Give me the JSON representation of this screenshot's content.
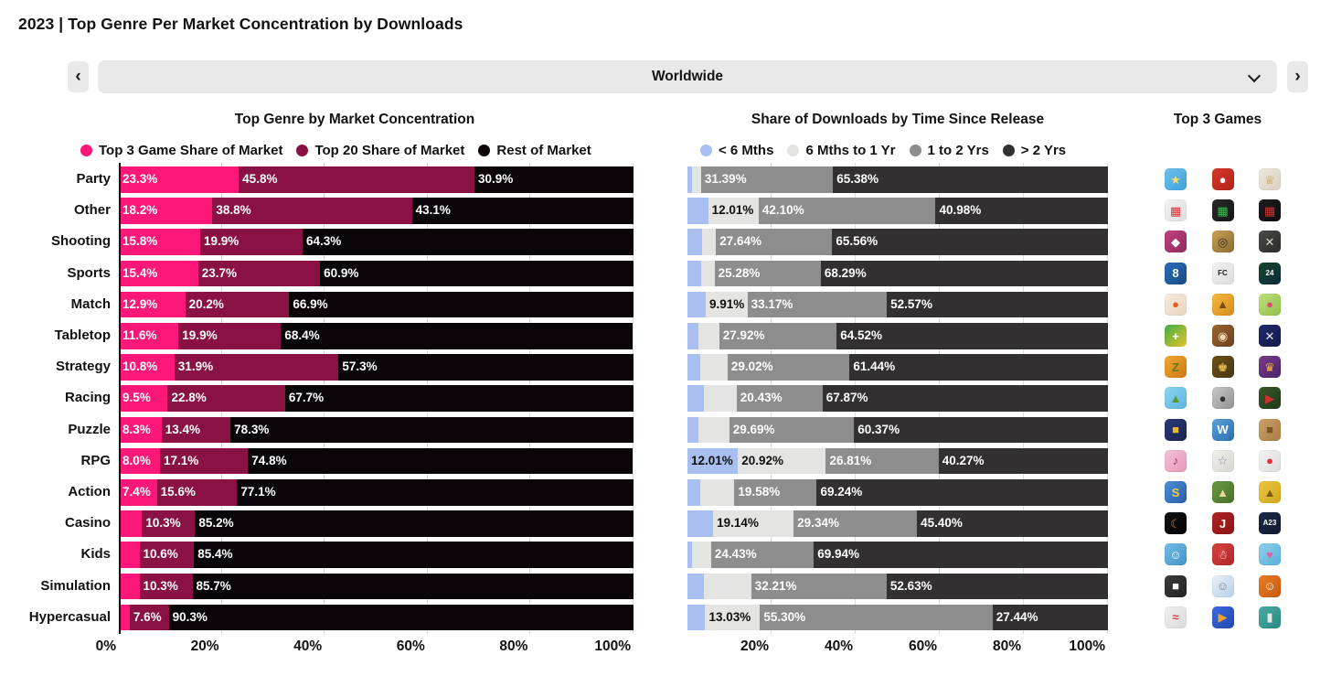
{
  "page_title": "2023 | Top Genre Per Market Concentration by Downloads",
  "selector": {
    "value": "Worldwide",
    "prev_label": "‹",
    "next_label": "›",
    "chevron": "chevron-down-icon"
  },
  "colors": {
    "control_bg": "#e9e9e9",
    "top3_share": "#fb1879",
    "top20_share": "#8a1143",
    "rest_of_market": "#0a0509",
    "lt_6_mths": "#a9bff1",
    "6m_to_1yr": "#e4e4e2",
    "1_to_2_yrs": "#8d8d8d",
    "gt_2_yrs": "#323031"
  },
  "chart_data": [
    {
      "type": "bar",
      "stacked": true,
      "orientation": "horizontal",
      "title": "Top Genre by Market Concentration",
      "xlim": [
        0,
        100
      ],
      "grid": true,
      "legend_position": "top",
      "x_ticks": [
        "0%",
        "20%",
        "40%",
        "60%",
        "80%",
        "100%"
      ],
      "x_tick_pcts": [
        0,
        20,
        40,
        60,
        80,
        100
      ],
      "categories": [
        "Party",
        "Other",
        "Shooting",
        "Sports",
        "Match",
        "Tabletop",
        "Strategy",
        "Racing",
        "Puzzle",
        "RPG",
        "Action",
        "Casino",
        "Kids",
        "Simulation",
        "Hypercasual"
      ],
      "series": [
        {
          "name": "Top 3 Game Share of Market",
          "color": "#fb1879",
          "label_color": "#ffffff",
          "values": [
            23.3,
            18.2,
            15.8,
            15.4,
            12.9,
            11.6,
            10.8,
            9.5,
            8.3,
            8.0,
            7.4,
            4.5,
            4.0,
            4.0,
            2.1
          ],
          "labels": [
            "23.3%",
            "18.2%",
            "15.8%",
            "15.4%",
            "12.9%",
            "11.6%",
            "10.8%",
            "9.5%",
            "8.3%",
            "8.0%",
            "7.4%",
            "",
            "",
            "",
            ""
          ]
        },
        {
          "name": "Top 20 Share of Market",
          "color": "#8a1143",
          "label_color": "#ffffff",
          "values": [
            45.8,
            38.8,
            19.9,
            23.7,
            20.2,
            19.9,
            31.9,
            22.8,
            13.4,
            17.1,
            15.6,
            10.3,
            10.6,
            10.3,
            7.6
          ],
          "labels": [
            "45.8%",
            "38.8%",
            "19.9%",
            "23.7%",
            "20.2%",
            "19.9%",
            "31.9%",
            "22.8%",
            "13.4%",
            "17.1%",
            "15.6%",
            "10.3%",
            "10.6%",
            "10.3%",
            "7.6%"
          ]
        },
        {
          "name": "Rest of Market",
          "color": "#0a0509",
          "label_color": "#ffffff",
          "values": [
            30.9,
            43.1,
            64.3,
            60.9,
            66.9,
            68.4,
            57.3,
            67.7,
            78.3,
            74.8,
            77.1,
            85.2,
            85.4,
            85.7,
            90.3
          ],
          "labels": [
            "30.9%",
            "43.1%",
            "64.3%",
            "60.9%",
            "66.9%",
            "68.4%",
            "57.3%",
            "67.7%",
            "78.3%",
            "74.8%",
            "77.1%",
            "85.2%",
            "85.4%",
            "85.7%",
            "90.3%"
          ]
        }
      ],
      "note": "Unlabeled segments sized from 100% remainder"
    },
    {
      "type": "bar",
      "stacked": true,
      "orientation": "horizontal",
      "title": "Share of Downloads by Time Since Release",
      "xlim": [
        0,
        100
      ],
      "grid": true,
      "legend_position": "top",
      "x_ticks": [
        "20%",
        "40%",
        "60%",
        "80%",
        "100%"
      ],
      "x_tick_pcts": [
        20,
        40,
        60,
        80,
        100
      ],
      "categories": [
        "Party",
        "Other",
        "Shooting",
        "Sports",
        "Match",
        "Tabletop",
        "Strategy",
        "Racing",
        "Puzzle",
        "RPG",
        "Action",
        "Casino",
        "Kids",
        "Simulation",
        "Hypercasual"
      ],
      "series": [
        {
          "name": "< 6 Mths",
          "color": "#a9bff1",
          "label_color": "#101010",
          "values": [
            1.0,
            4.91,
            3.4,
            3.2,
            4.35,
            2.5,
            3.0,
            4.0,
            2.5,
            12.01,
            3.0,
            6.12,
            1.0,
            4.0,
            4.23
          ],
          "labels": [
            "",
            "",
            "",
            "",
            "",
            "",
            "",
            "",
            "",
            "12.01%",
            "",
            "",
            "",
            "",
            ""
          ]
        },
        {
          "name": "6 Mths to 1 Yr",
          "color": "#e4e4e2",
          "label_color": "#101010",
          "values": [
            2.23,
            12.01,
            3.4,
            3.23,
            9.91,
            5.06,
            6.54,
            7.7,
            7.44,
            20.92,
            8.18,
            19.14,
            4.63,
            11.16,
            13.03
          ],
          "labels": [
            "",
            "12.01%",
            "",
            "",
            "9.91%",
            "",
            "",
            "",
            "",
            "20.92%",
            "",
            "19.14%",
            "",
            "",
            "13.03%"
          ]
        },
        {
          "name": "1 to 2 Yrs",
          "color": "#8d8d8d",
          "label_color": "#ffffff",
          "values": [
            31.39,
            42.1,
            27.64,
            25.28,
            33.17,
            27.92,
            29.02,
            20.43,
            29.69,
            26.81,
            19.58,
            29.34,
            24.43,
            32.21,
            55.3
          ],
          "labels": [
            "31.39%",
            "42.10%",
            "27.64%",
            "25.28%",
            "33.17%",
            "27.92%",
            "29.02%",
            "20.43%",
            "29.69%",
            "26.81%",
            "19.58%",
            "29.34%",
            "24.43%",
            "32.21%",
            "55.30%"
          ]
        },
        {
          "name": "> 2 Yrs",
          "color": "#323031",
          "label_color": "#ffffff",
          "values": [
            65.38,
            40.98,
            65.56,
            68.29,
            52.57,
            64.52,
            61.44,
            67.87,
            60.37,
            40.27,
            69.24,
            45.4,
            69.94,
            52.63,
            27.44
          ],
          "labels": [
            "65.38%",
            "40.98%",
            "65.56%",
            "68.29%",
            "52.57%",
            "64.52%",
            "61.44%",
            "67.87%",
            "60.37%",
            "40.27%",
            "69.24%",
            "45.40%",
            "69.94%",
            "52.63%",
            "27.44%"
          ]
        }
      ],
      "note": "Unlabeled segments sized from 100% remainder"
    }
  ],
  "top3_games": {
    "title": "Top 3 Games",
    "rows": [
      {
        "genre": "Party",
        "icons": [
          {
            "bg": "#6fc3ef",
            "bg2": "#3f9fd8",
            "fg": "#f7e06a",
            "glyph": "★"
          },
          {
            "bg": "#d43a2e",
            "bg2": "#b22218",
            "fg": "#ffffff",
            "glyph": "●"
          },
          {
            "bg": "#efe7db",
            "bg2": "#d8cfc0",
            "fg": "#c89b3c",
            "glyph": "♕"
          }
        ]
      },
      {
        "genre": "Other",
        "icons": [
          {
            "bg": "#f4f4f4",
            "bg2": "#dddddd",
            "fg": "#e03030",
            "glyph": "▦"
          },
          {
            "bg": "#2a2a2a",
            "bg2": "#161616",
            "fg": "#3fba4f",
            "glyph": "▦"
          },
          {
            "bg": "#1f1f1f",
            "bg2": "#0d0d0d",
            "fg": "#d03030",
            "glyph": "▦"
          }
        ]
      },
      {
        "genre": "Shooting",
        "icons": [
          {
            "bg": "#c2407f",
            "bg2": "#8e2d5e",
            "fg": "#ffffff",
            "glyph": "◆"
          },
          {
            "bg": "#caa255",
            "bg2": "#8a6a2f",
            "fg": "#2a2a2a",
            "glyph": "◎"
          },
          {
            "bg": "#4a4a48",
            "bg2": "#2c2c2a",
            "fg": "#d8d4c8",
            "glyph": "✕"
          }
        ]
      },
      {
        "genre": "Sports",
        "icons": [
          {
            "bg": "#2b6fb5",
            "bg2": "#164a86",
            "fg": "#ffffff",
            "glyph": "8"
          },
          {
            "bg": "#f2f2f2",
            "bg2": "#dcdcdc",
            "fg": "#1a1a1a",
            "glyph": "FC"
          },
          {
            "bg": "#17452c",
            "bg2": "#0d2a3c",
            "fg": "#ffffff",
            "glyph": "24"
          }
        ]
      },
      {
        "genre": "Match",
        "icons": [
          {
            "bg": "#f6ece0",
            "bg2": "#e8d4bc",
            "fg": "#e85a2a",
            "glyph": "●"
          },
          {
            "bg": "#f2b93c",
            "bg2": "#d88a1e",
            "fg": "#7a4a10",
            "glyph": "▲"
          },
          {
            "bg": "#bfe07a",
            "bg2": "#8fc04a",
            "fg": "#e04a7a",
            "glyph": "●"
          }
        ]
      },
      {
        "genre": "Tabletop",
        "icons": [
          {
            "bg": "#3fae49",
            "bg2": "#e8c32a",
            "fg": "#ffffff",
            "glyph": "+"
          },
          {
            "bg": "#9a6232",
            "bg2": "#6e421c",
            "fg": "#e8d8b0",
            "glyph": "◉"
          },
          {
            "bg": "#202a6e",
            "bg2": "#141a4a",
            "fg": "#e8e8f0",
            "glyph": "✕"
          }
        ]
      },
      {
        "genre": "Strategy",
        "icons": [
          {
            "bg": "#f0a830",
            "bg2": "#d07818",
            "fg": "#5a7a20",
            "glyph": "Z"
          },
          {
            "bg": "#6a5018",
            "bg2": "#4a3810",
            "fg": "#e8c050",
            "glyph": "♚"
          },
          {
            "bg": "#7a3a8e",
            "bg2": "#4a2468",
            "fg": "#f0b040",
            "glyph": "♛"
          }
        ]
      },
      {
        "genre": "Racing",
        "icons": [
          {
            "bg": "#8fd4f0",
            "bg2": "#5ab4e0",
            "fg": "#5a9a30",
            "glyph": "▲"
          },
          {
            "bg": "#c8c8c8",
            "bg2": "#909090",
            "fg": "#303030",
            "glyph": "●"
          },
          {
            "bg": "#3a5a28",
            "bg2": "#203818",
            "fg": "#d03030",
            "glyph": "▶"
          }
        ]
      },
      {
        "genre": "Puzzle",
        "icons": [
          {
            "bg": "#2a3a7a",
            "bg2": "#18244e",
            "fg": "#e8b830",
            "glyph": "■"
          },
          {
            "bg": "#5aa0d8",
            "bg2": "#2a70b0",
            "fg": "#ffffff",
            "glyph": "W"
          },
          {
            "bg": "#caa26a",
            "bg2": "#a87c42",
            "fg": "#7a5424",
            "glyph": "■"
          }
        ]
      },
      {
        "genre": "RPG",
        "icons": [
          {
            "bg": "#f2c2d8",
            "bg2": "#e895b8",
            "fg": "#a03060",
            "glyph": "♪"
          },
          {
            "bg": "#f0eeea",
            "bg2": "#d8d6d0",
            "fg": "#8090b0",
            "glyph": "☆"
          },
          {
            "bg": "#f2f2f2",
            "bg2": "#dcdcdc",
            "fg": "#e03030",
            "glyph": "●"
          }
        ]
      },
      {
        "genre": "Action",
        "icons": [
          {
            "bg": "#4a90d8",
            "bg2": "#2a5aa8",
            "fg": "#f0d040",
            "glyph": "S"
          },
          {
            "bg": "#6a9a42",
            "bg2": "#47702a",
            "fg": "#e8d8a0",
            "glyph": "▲"
          },
          {
            "bg": "#ecc83e",
            "bg2": "#d0a620",
            "fg": "#7a5a10",
            "glyph": "▲"
          }
        ]
      },
      {
        "genre": "Casino",
        "icons": [
          {
            "bg": "#141414",
            "bg2": "#000000",
            "fg": "#e87820",
            "glyph": "☾"
          },
          {
            "bg": "#b02424",
            "bg2": "#8a1616",
            "fg": "#ffffff",
            "glyph": "J"
          },
          {
            "bg": "#1c2a48",
            "bg2": "#101a30",
            "fg": "#ffffff",
            "glyph": "A23"
          }
        ]
      },
      {
        "genre": "Kids",
        "icons": [
          {
            "bg": "#74bce8",
            "bg2": "#4494c8",
            "fg": "#ffffff",
            "glyph": "☺"
          },
          {
            "bg": "#d84040",
            "bg2": "#b02828",
            "fg": "#ffffff",
            "glyph": "☃"
          },
          {
            "bg": "#8ed0ec",
            "bg2": "#5ab0d8",
            "fg": "#e060a0",
            "glyph": "♥"
          }
        ]
      },
      {
        "genre": "Simulation",
        "icons": [
          {
            "bg": "#3c3c3c",
            "bg2": "#222222",
            "fg": "#ffffff",
            "glyph": "■"
          },
          {
            "bg": "#e8f0f8",
            "bg2": "#b8d0e8",
            "fg": "#808080",
            "glyph": "☺"
          },
          {
            "bg": "#ea7c24",
            "bg2": "#c85a10",
            "fg": "#ffffff",
            "glyph": "☺"
          }
        ]
      },
      {
        "genre": "Hypercasual",
        "icons": [
          {
            "bg": "#f0f0f0",
            "bg2": "#dadada",
            "fg": "#d04040",
            "glyph": "≈"
          },
          {
            "bg": "#3a6ae0",
            "bg2": "#2448b0",
            "fg": "#f0a030",
            "glyph": "▶"
          },
          {
            "bg": "#4aaca4",
            "bg2": "#2a8a82",
            "fg": "#e8e8e8",
            "glyph": "▮"
          }
        ]
      }
    ]
  }
}
